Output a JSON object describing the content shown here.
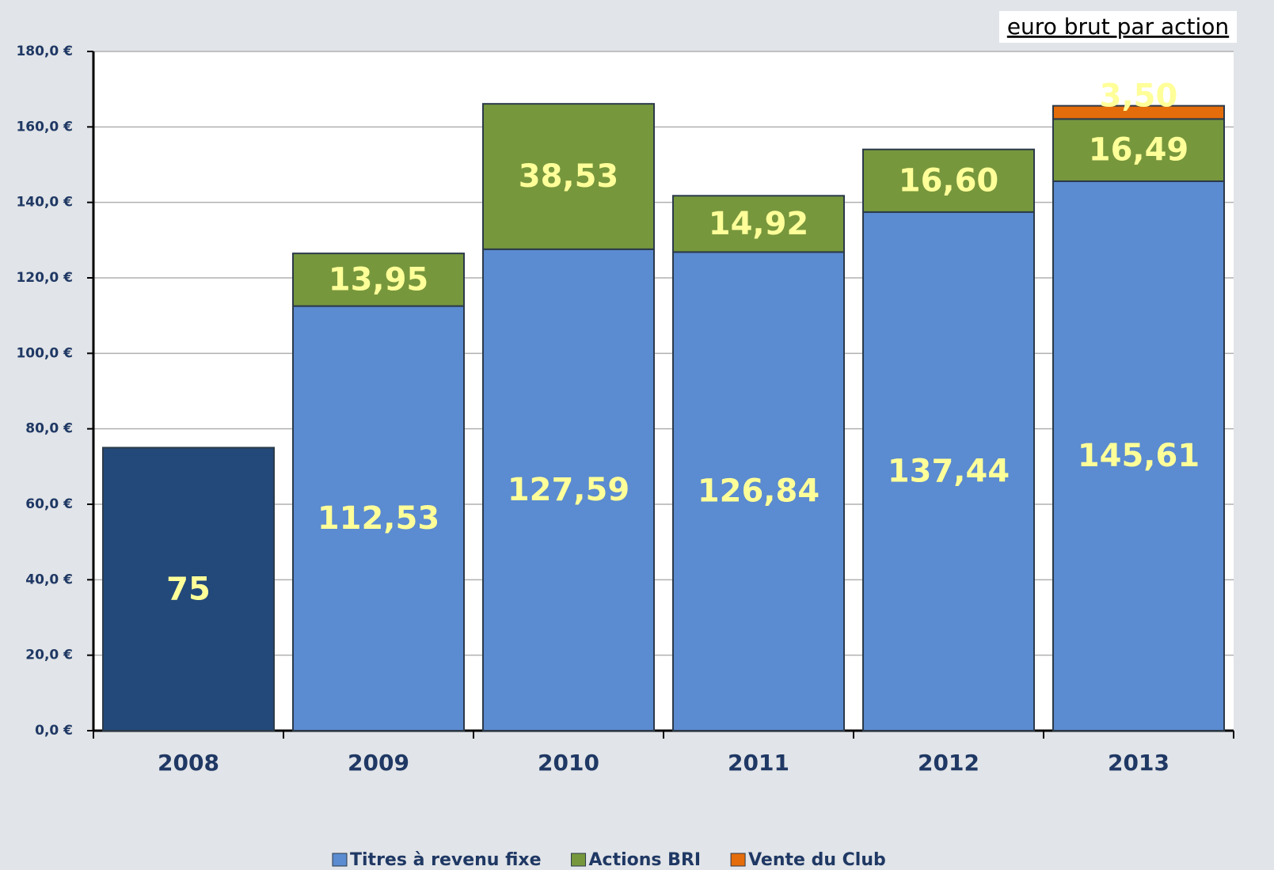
{
  "chart_data": {
    "type": "stacked_bar",
    "annotation": "euro brut par action",
    "categories": [
      "2008",
      "2009",
      "2010",
      "2011",
      "2012",
      "2013"
    ],
    "series": [
      {
        "name": "Titres à revenu fixe",
        "color": "#5b8bd0",
        "colors": [
          "#23497a",
          "#5b8bd0",
          "#5b8bd0",
          "#5b8bd0",
          "#5b8bd0",
          "#5b8bd0"
        ],
        "values": [
          75,
          112.53,
          127.59,
          126.84,
          137.44,
          145.61
        ],
        "value_labels": [
          "75",
          "112,53",
          "127,59",
          "126,84",
          "137,44",
          "145,61"
        ]
      },
      {
        "name": "Actions BRI",
        "color": "#77973d",
        "values": [
          null,
          13.95,
          38.53,
          14.92,
          16.6,
          16.49
        ],
        "value_labels": [
          null,
          "13,95",
          "38,53",
          "14,92",
          "16,60",
          "16,49"
        ]
      },
      {
        "name": "Vente du Club",
        "color": "#e46c0a",
        "values": [
          null,
          null,
          null,
          null,
          null,
          3.5
        ],
        "value_labels": [
          null,
          null,
          null,
          null,
          null,
          "3,50"
        ]
      }
    ],
    "ylim": [
      0,
      180
    ],
    "yticks": [
      {
        "value": 0,
        "label": "0,0 €"
      },
      {
        "value": 20,
        "label": "20,0 €"
      },
      {
        "value": 40,
        "label": "40,0 €"
      },
      {
        "value": 60,
        "label": "60,0 €"
      },
      {
        "value": 80,
        "label": "80,0 €"
      },
      {
        "value": 100,
        "label": "100,0 €"
      },
      {
        "value": 120,
        "label": "120,0 €"
      },
      {
        "value": 140,
        "label": "140,0 €"
      },
      {
        "value": 160,
        "label": "160,0 €"
      },
      {
        "value": 180,
        "label": "180,0 €"
      }
    ],
    "grid": true,
    "legend": "bottom"
  }
}
